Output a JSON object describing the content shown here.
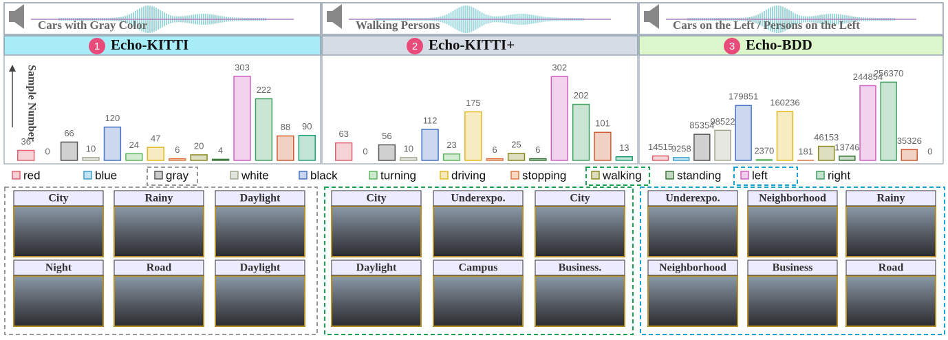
{
  "panels": [
    {
      "caption": "Cars with Gray Color",
      "number": "1",
      "title": "Echo-KITTI",
      "color": "#a8ecf8"
    },
    {
      "caption": "Walking Persons",
      "number": "2",
      "title": "Echo-KITTI+",
      "color": "#d6dce6"
    },
    {
      "caption": "Cars on the Left / Persons on the Left",
      "number": "3",
      "title": "Echo-BDD",
      "color": "#dcf7cb"
    }
  ],
  "chart_data": [
    {
      "type": "bar",
      "ylabel": "Sample Number",
      "categories": [
        null,
        null,
        null,
        null,
        null,
        null,
        null,
        null,
        null,
        null,
        null,
        null,
        null,
        null
      ],
      "values": [
        36,
        0,
        66,
        10,
        120,
        24,
        47,
        6,
        20,
        4,
        303,
        222,
        88,
        90
      ],
      "colors": [
        "#e06070",
        "#3aa0d0",
        "#555555",
        "#a0a890",
        "#4472c4",
        "#5cb85c",
        "#e0b820",
        "#e07840",
        "#8a8a20",
        "#3a7a3a",
        "#d060c0",
        "#40a060",
        "#d05a30",
        "#20a070"
      ],
      "ylim": [
        0,
        330
      ]
    },
    {
      "type": "bar",
      "categories": [
        null,
        null,
        null,
        null,
        null,
        null,
        null,
        null,
        null,
        null,
        null,
        null,
        null,
        null
      ],
      "values": [
        63,
        0,
        56,
        10,
        112,
        23,
        175,
        6,
        25,
        6,
        302,
        202,
        101,
        13
      ],
      "colors": [
        "#e06070",
        "#3aa0d0",
        "#555555",
        "#a0a890",
        "#4472c4",
        "#5cb85c",
        "#e0b820",
        "#e07840",
        "#8a8a20",
        "#3a7a3a",
        "#d060c0",
        "#40a060",
        "#d05a30",
        "#20a070"
      ],
      "ylim": [
        0,
        330
      ]
    },
    {
      "type": "bar",
      "categories": [
        null,
        null,
        null,
        null,
        null,
        null,
        null,
        null,
        null,
        null,
        null,
        null,
        null,
        null
      ],
      "values": [
        14515,
        9258,
        85354,
        98522,
        179851,
        2370,
        160236,
        181,
        46153,
        13746,
        244854,
        256370,
        35326,
        0
      ],
      "colors": [
        "#e06070",
        "#3aa0d0",
        "#555555",
        "#a0a890",
        "#4472c4",
        "#5cb85c",
        "#e0b820",
        "#e07840",
        "#8a8a20",
        "#3a7a3a",
        "#d060c0",
        "#40a060",
        "#d05a30",
        "#20a070"
      ],
      "ylim": [
        0,
        300000
      ]
    }
  ],
  "legend": [
    {
      "name": "red",
      "color": "#e06070"
    },
    {
      "name": "blue",
      "color": "#3aa0d0"
    },
    {
      "name": "gray",
      "color": "#555555"
    },
    {
      "name": "white",
      "color": "#a0a890"
    },
    {
      "name": "black",
      "color": "#4472c4"
    },
    {
      "name": "turning",
      "color": "#5cb85c"
    },
    {
      "name": "driving",
      "color": "#e0b820"
    },
    {
      "name": "stopping",
      "color": "#e07840"
    },
    {
      "name": "walking",
      "color": "#8a8a20"
    },
    {
      "name": "standing",
      "color": "#3a7a3a"
    },
    {
      "name": "left",
      "color": "#d060c0"
    },
    {
      "name": "right",
      "color": "#40a060"
    }
  ],
  "scenes": [
    [
      "City",
      "Rainy",
      "Daylight",
      "Night",
      "Road",
      "Daylight"
    ],
    [
      "City",
      "Underexpo.",
      "City",
      "Daylight",
      "Campus",
      "Business."
    ],
    [
      "Underexpo.",
      "Neighborhood",
      "Rainy",
      "Neighborhood",
      "Business",
      "Road"
    ]
  ]
}
